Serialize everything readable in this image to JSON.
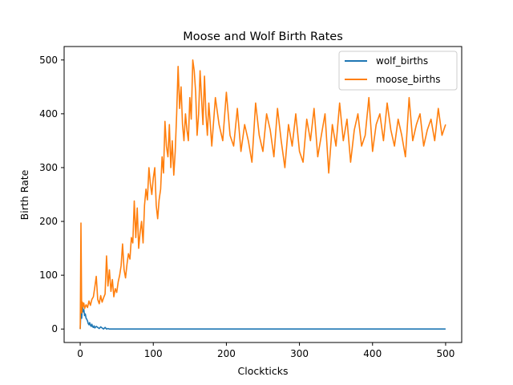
{
  "chart_data": {
    "type": "line",
    "title": "Moose and Wolf Birth Rates",
    "xlabel": "Clockticks",
    "ylabel": "Birth Rate",
    "xlim": [
      -22,
      522
    ],
    "ylim": [
      -25,
      525
    ],
    "xticks": [
      0,
      100,
      200,
      300,
      400,
      500
    ],
    "yticks": [
      0,
      100,
      200,
      300,
      400,
      500
    ],
    "grid": false,
    "legend_position": "top-right",
    "series": [
      {
        "name": "wolf_births",
        "color": "#1f77b4",
        "x": [
          0,
          1,
          2,
          3,
          4,
          5,
          6,
          7,
          8,
          9,
          10,
          11,
          12,
          13,
          14,
          15,
          16,
          17,
          18,
          19,
          20,
          22,
          24,
          26,
          28,
          30,
          32,
          34,
          36,
          38,
          40,
          60,
          100,
          200,
          300,
          400,
          500
        ],
        "y": [
          0,
          38,
          20,
          43,
          32,
          36,
          25,
          28,
          20,
          18,
          15,
          10,
          8,
          12,
          7,
          5,
          9,
          4,
          3,
          6,
          2,
          5,
          3,
          1,
          4,
          2,
          0,
          3,
          0,
          1,
          0,
          0,
          0,
          0,
          0,
          0,
          0
        ]
      },
      {
        "name": "moose_births",
        "color": "#ff7f0e",
        "x": [
          0,
          1,
          2,
          3,
          4,
          5,
          6,
          8,
          10,
          12,
          14,
          16,
          18,
          20,
          22,
          24,
          26,
          28,
          30,
          32,
          34,
          36,
          38,
          40,
          42,
          44,
          46,
          48,
          50,
          52,
          54,
          56,
          58,
          60,
          62,
          64,
          66,
          68,
          70,
          72,
          74,
          76,
          78,
          80,
          82,
          84,
          86,
          88,
          90,
          92,
          94,
          96,
          98,
          100,
          102,
          104,
          106,
          108,
          110,
          112,
          114,
          116,
          118,
          120,
          122,
          124,
          126,
          128,
          130,
          132,
          134,
          136,
          138,
          140,
          142,
          144,
          146,
          148,
          150,
          152,
          154,
          156,
          158,
          160,
          162,
          164,
          166,
          168,
          170,
          172,
          174,
          176,
          178,
          180,
          185,
          190,
          195,
          200,
          205,
          210,
          215,
          220,
          225,
          230,
          235,
          240,
          245,
          250,
          255,
          260,
          265,
          270,
          275,
          280,
          285,
          290,
          295,
          300,
          305,
          310,
          315,
          320,
          325,
          330,
          335,
          340,
          345,
          350,
          355,
          360,
          365,
          370,
          375,
          380,
          385,
          390,
          395,
          400,
          405,
          410,
          415,
          420,
          425,
          430,
          435,
          440,
          445,
          450,
          455,
          460,
          465,
          470,
          475,
          480,
          485,
          490,
          495,
          500
        ],
        "y": [
          0,
          197,
          30,
          50,
          42,
          48,
          38,
          45,
          40,
          52,
          44,
          55,
          60,
          78,
          98,
          55,
          47,
          62,
          50,
          58,
          65,
          136,
          80,
          110,
          70,
          92,
          60,
          75,
          68,
          88,
          100,
          118,
          158,
          110,
          95,
          120,
          140,
          130,
          170,
          160,
          238,
          170,
          225,
          150,
          180,
          200,
          160,
          230,
          260,
          240,
          300,
          270,
          250,
          280,
          300,
          230,
          205,
          240,
          260,
          320,
          290,
          386,
          340,
          320,
          380,
          300,
          350,
          286,
          330,
          400,
          488,
          410,
          450,
          380,
          350,
          400,
          370,
          350,
          430,
          390,
          500,
          480,
          440,
          360,
          400,
          480,
          430,
          380,
          470,
          400,
          360,
          420,
          380,
          340,
          430,
          380,
          350,
          440,
          360,
          340,
          410,
          330,
          380,
          350,
          310,
          420,
          360,
          330,
          400,
          370,
          320,
          410,
          350,
          300,
          380,
          340,
          400,
          330,
          310,
          390,
          350,
          410,
          320,
          360,
          400,
          290,
          380,
          340,
          420,
          350,
          390,
          310,
          370,
          400,
          340,
          360,
          430,
          330,
          380,
          400,
          350,
          420,
          370,
          340,
          390,
          360,
          320,
          430,
          350,
          380,
          400,
          340,
          370,
          390,
          350,
          410,
          360,
          380
        ]
      }
    ]
  }
}
